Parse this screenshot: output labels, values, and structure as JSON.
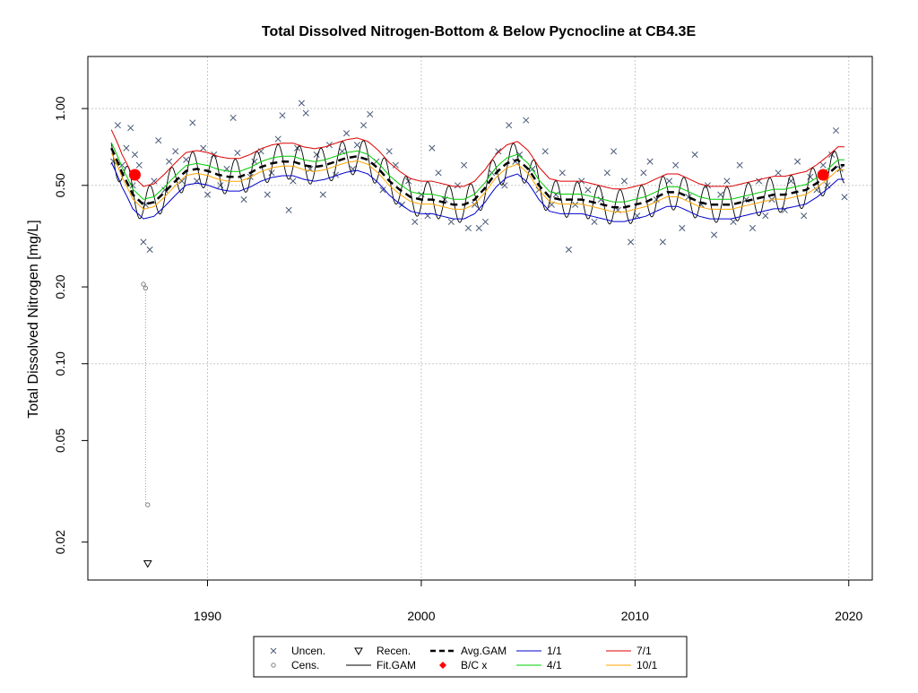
{
  "chart_data": {
    "type": "scatter",
    "title": "Total Dissolved Nitrogen-Bottom & Below Pycnocline at CB4.3E",
    "xlabel": "",
    "ylabel": "Total Dissolved Nitrogen [mg/L]",
    "y_scale": "log",
    "xlim": [
      1984.4,
      2021.1
    ],
    "ylim": [
      0.0142,
      1.6
    ],
    "x_ticks": [
      1990,
      2000,
      2010,
      2020
    ],
    "y_ticks": [
      1.0,
      0.5,
      0.2,
      0.1,
      0.05,
      0.02
    ],
    "y_tick_labels": [
      "1.00",
      "0.50",
      "0.20",
      "0.10",
      "0.05",
      "0.02"
    ],
    "grid": true,
    "legend_position": "bottom",
    "legend": [
      {
        "label": "Uncen.",
        "symbol": "x",
        "color": "#4a5a78"
      },
      {
        "label": "Cens.",
        "symbol": "circle",
        "color": "#808080"
      },
      {
        "label": "Recen.",
        "symbol": "triangle-down",
        "color": "#000000"
      },
      {
        "label": "Fit.GAM",
        "symbol": "line",
        "color": "#000000"
      },
      {
        "label": "Avg.GAM",
        "symbol": "dashed-line",
        "color": "#000000"
      },
      {
        "label": "B/C x",
        "symbol": "diamond",
        "color": "#ff0000"
      },
      {
        "label": "1/1",
        "symbol": "line",
        "color": "#0000cd"
      },
      {
        "label": "4/1",
        "symbol": "line",
        "color": "#00cc00"
      },
      {
        "label": "7/1",
        "symbol": "line",
        "color": "#dd0000"
      },
      {
        "label": "10/1",
        "symbol": "line",
        "color": "#ffa500"
      }
    ],
    "avg_gam": {
      "x": [
        1985.5,
        1986.0,
        1986.5,
        1987.0,
        1987.5,
        1988.0,
        1988.5,
        1989.0,
        1989.5,
        1990.0,
        1990.5,
        1991.0,
        1991.5,
        1992.0,
        1992.5,
        1993.0,
        1993.5,
        1994.0,
        1994.5,
        1995.0,
        1995.5,
        1996.0,
        1996.5,
        1997.0,
        1997.5,
        1998.0,
        1998.5,
        1999.0,
        1999.5,
        2000.0,
        2000.5,
        2001.0,
        2001.5,
        2002.0,
        2002.5,
        2003.0,
        2003.5,
        2004.0,
        2004.5,
        2005.0,
        2005.5,
        2006.0,
        2006.5,
        2007.0,
        2007.5,
        2008.0,
        2008.5,
        2009.0,
        2009.5,
        2010.0,
        2010.5,
        2011.0,
        2011.5,
        2012.0,
        2012.5,
        2013.0,
        2013.5,
        2014.0,
        2014.5,
        2015.0,
        2015.5,
        2016.0,
        2016.5,
        2017.0,
        2017.5,
        2018.0,
        2018.5,
        2019.0,
        2019.5,
        2019.8
      ],
      "y": [
        0.7,
        0.56,
        0.46,
        0.42,
        0.43,
        0.47,
        0.52,
        0.57,
        0.58,
        0.57,
        0.55,
        0.54,
        0.54,
        0.56,
        0.59,
        0.61,
        0.62,
        0.62,
        0.6,
        0.59,
        0.6,
        0.62,
        0.64,
        0.65,
        0.63,
        0.58,
        0.52,
        0.48,
        0.45,
        0.44,
        0.44,
        0.43,
        0.42,
        0.42,
        0.44,
        0.49,
        0.56,
        0.61,
        0.63,
        0.58,
        0.5,
        0.45,
        0.44,
        0.44,
        0.44,
        0.43,
        0.42,
        0.41,
        0.41,
        0.42,
        0.43,
        0.45,
        0.47,
        0.47,
        0.45,
        0.43,
        0.42,
        0.42,
        0.42,
        0.43,
        0.44,
        0.45,
        0.46,
        0.46,
        0.47,
        0.48,
        0.51,
        0.55,
        0.6,
        0.6
      ]
    },
    "season_lines": [
      {
        "label": "1/1",
        "color": "#0000cd",
        "factor": 0.88
      },
      {
        "label": "4/1",
        "color": "#00cc00",
        "factor": 1.05
      },
      {
        "label": "7/1",
        "color": "#dd0000",
        "factor": 1.18
      },
      {
        "label": "10/1",
        "color": "#ffa500",
        "factor": 0.96
      }
    ],
    "bc_points": [
      {
        "x": 1986.6,
        "y": 0.55
      },
      {
        "x": 2018.8,
        "y": 0.55
      }
    ],
    "uncensored": {
      "x": [
        1985.6,
        1985.8,
        1986.0,
        1986.2,
        1986.4,
        1986.5,
        1986.6,
        1986.8,
        1987.0,
        1987.1,
        1987.3,
        1987.5,
        1987.7,
        1988.0,
        1988.2,
        1988.5,
        1988.8,
        1989.0,
        1989.3,
        1989.5,
        1989.8,
        1990.0,
        1990.3,
        1990.6,
        1990.9,
        1991.2,
        1991.4,
        1991.7,
        1992.0,
        1992.2,
        1992.5,
        1992.8,
        1993.0,
        1993.3,
        1993.5,
        1993.8,
        1994.0,
        1994.2,
        1994.4,
        1994.6,
        1994.8,
        1995.1,
        1995.4,
        1995.7,
        1996.0,
        1996.3,
        1996.5,
        1996.8,
        1997.0,
        1997.3,
        1997.6,
        1997.9,
        1998.2,
        1998.5,
        1998.8,
        1999.1,
        1999.4,
        1999.7,
        2000.0,
        2000.3,
        2000.5,
        2000.8,
        2001.1,
        2001.4,
        2001.7,
        2002.0,
        2002.2,
        2002.5,
        2002.7,
        2003.0,
        2003.3,
        2003.6,
        2003.9,
        2004.1,
        2004.4,
        2004.6,
        2004.9,
        2005.2,
        2005.5,
        2005.8,
        2006.1,
        2006.3,
        2006.6,
        2006.9,
        2007.2,
        2007.5,
        2007.8,
        2008.1,
        2008.4,
        2008.7,
        2009.0,
        2009.2,
        2009.5,
        2009.8,
        2010.1,
        2010.4,
        2010.7,
        2011.0,
        2011.3,
        2011.6,
        2011.9,
        2012.2,
        2012.5,
        2012.8,
        2013.1,
        2013.4,
        2013.7,
        2014.0,
        2014.3,
        2014.6,
        2014.9,
        2015.2,
        2015.5,
        2015.8,
        2016.1,
        2016.4,
        2016.7,
        2017.0,
        2017.3,
        2017.6,
        2017.9,
        2018.2,
        2018.5,
        2018.8,
        2019.0,
        2019.2,
        2019.4,
        2019.6,
        2019.8
      ],
      "y": [
        0.62,
        0.86,
        0.6,
        0.7,
        0.84,
        0.5,
        0.66,
        0.6,
        0.3,
        0.42,
        0.28,
        0.52,
        0.75,
        0.48,
        0.62,
        0.68,
        0.52,
        0.63,
        0.88,
        0.52,
        0.7,
        0.46,
        0.66,
        0.5,
        0.58,
        0.92,
        0.67,
        0.44,
        0.54,
        0.62,
        0.68,
        0.46,
        0.56,
        0.76,
        0.94,
        0.4,
        0.52,
        0.7,
        1.05,
        0.96,
        0.58,
        0.66,
        0.46,
        0.72,
        0.55,
        0.68,
        0.8,
        0.58,
        0.72,
        0.86,
        0.95,
        0.62,
        0.48,
        0.68,
        0.6,
        0.42,
        0.52,
        0.36,
        0.46,
        0.38,
        0.7,
        0.56,
        0.44,
        0.36,
        0.5,
        0.6,
        0.34,
        0.42,
        0.34,
        0.36,
        0.56,
        0.68,
        0.5,
        0.86,
        0.62,
        0.66,
        0.9,
        0.58,
        0.48,
        0.68,
        0.42,
        0.46,
        0.56,
        0.28,
        0.42,
        0.52,
        0.48,
        0.36,
        0.44,
        0.56,
        0.68,
        0.4,
        0.52,
        0.3,
        0.38,
        0.56,
        0.62,
        0.44,
        0.3,
        0.52,
        0.6,
        0.34,
        0.45,
        0.66,
        0.42,
        0.5,
        0.32,
        0.46,
        0.52,
        0.36,
        0.6,
        0.44,
        0.34,
        0.52,
        0.38,
        0.44,
        0.56,
        0.4,
        0.52,
        0.62,
        0.38,
        0.54,
        0.48,
        0.6,
        0.5,
        0.66,
        0.82,
        0.58,
        0.45
      ]
    },
    "censored": {
      "x": [
        1987.0,
        1987.1,
        1987.2
      ],
      "y": [
        0.205,
        0.198,
        0.028
      ]
    },
    "recensored": {
      "x": [
        1987.2
      ],
      "y": [
        0.0165
      ]
    },
    "fit_gam": {
      "amplitude": 0.16
    }
  }
}
